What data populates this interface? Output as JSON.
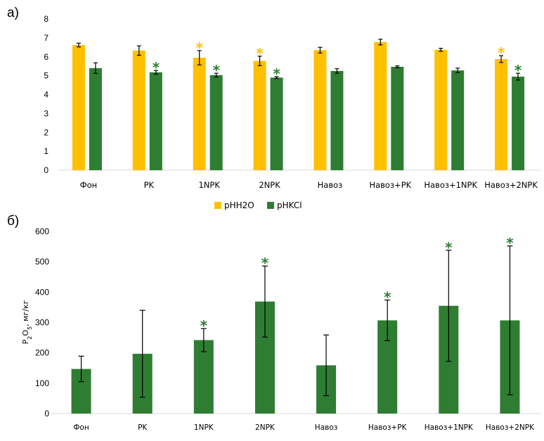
{
  "chart_data": [
    {
      "panel": "а)",
      "type": "bar",
      "categories": [
        "Фон",
        "PK",
        "1NPK",
        "2NPK",
        "Навоз",
        "Навоз+PK",
        "Навоз+1NPK",
        "Навоз+2NPK"
      ],
      "ylim": [
        0,
        8
      ],
      "yticks": [
        0,
        1,
        2,
        3,
        4,
        5,
        6,
        7,
        8
      ],
      "series": [
        {
          "name": "pHH2O",
          "color": "#ffc000",
          "values": [
            6.62,
            6.33,
            5.95,
            5.78,
            6.35,
            6.78,
            6.37,
            5.88
          ],
          "errors": [
            0.1,
            0.25,
            0.38,
            0.25,
            0.15,
            0.15,
            0.08,
            0.18
          ],
          "significant": [
            false,
            false,
            true,
            true,
            false,
            false,
            false,
            true
          ]
        },
        {
          "name": "pHKCl",
          "color": "#2e7d32",
          "values": [
            5.4,
            5.18,
            5.03,
            4.9,
            5.25,
            5.47,
            5.28,
            4.95
          ],
          "errors": [
            0.28,
            0.1,
            0.1,
            0.05,
            0.12,
            0.05,
            0.12,
            0.18
          ],
          "significant": [
            false,
            true,
            true,
            true,
            false,
            false,
            false,
            true
          ]
        }
      ],
      "star": "*",
      "legend_position": "bottom"
    },
    {
      "panel": "б)",
      "type": "bar",
      "categories": [
        "Фон",
        "PK",
        "1NPK",
        "2NPK",
        "Навоз",
        "Навоз+PK",
        "Навоз+1NPK",
        "Навоз+2NPK"
      ],
      "ylabel": "P2O5, мг/кг",
      "ylabel_parts": [
        "P",
        "2",
        "O",
        "5",
        ", мг/кг"
      ],
      "ylim": [
        0,
        600
      ],
      "yticks": [
        0,
        100,
        200,
        300,
        400,
        500,
        600
      ],
      "series": [
        {
          "name": "P2O5",
          "color": "#2e7d32",
          "values": [
            147,
            197,
            242,
            369,
            159,
            307,
            355,
            307
          ],
          "errors": [
            42,
            143,
            38,
            117,
            100,
            67,
            183,
            245
          ],
          "significant": [
            false,
            false,
            true,
            true,
            false,
            true,
            true,
            true
          ]
        }
      ],
      "star": "*"
    }
  ]
}
